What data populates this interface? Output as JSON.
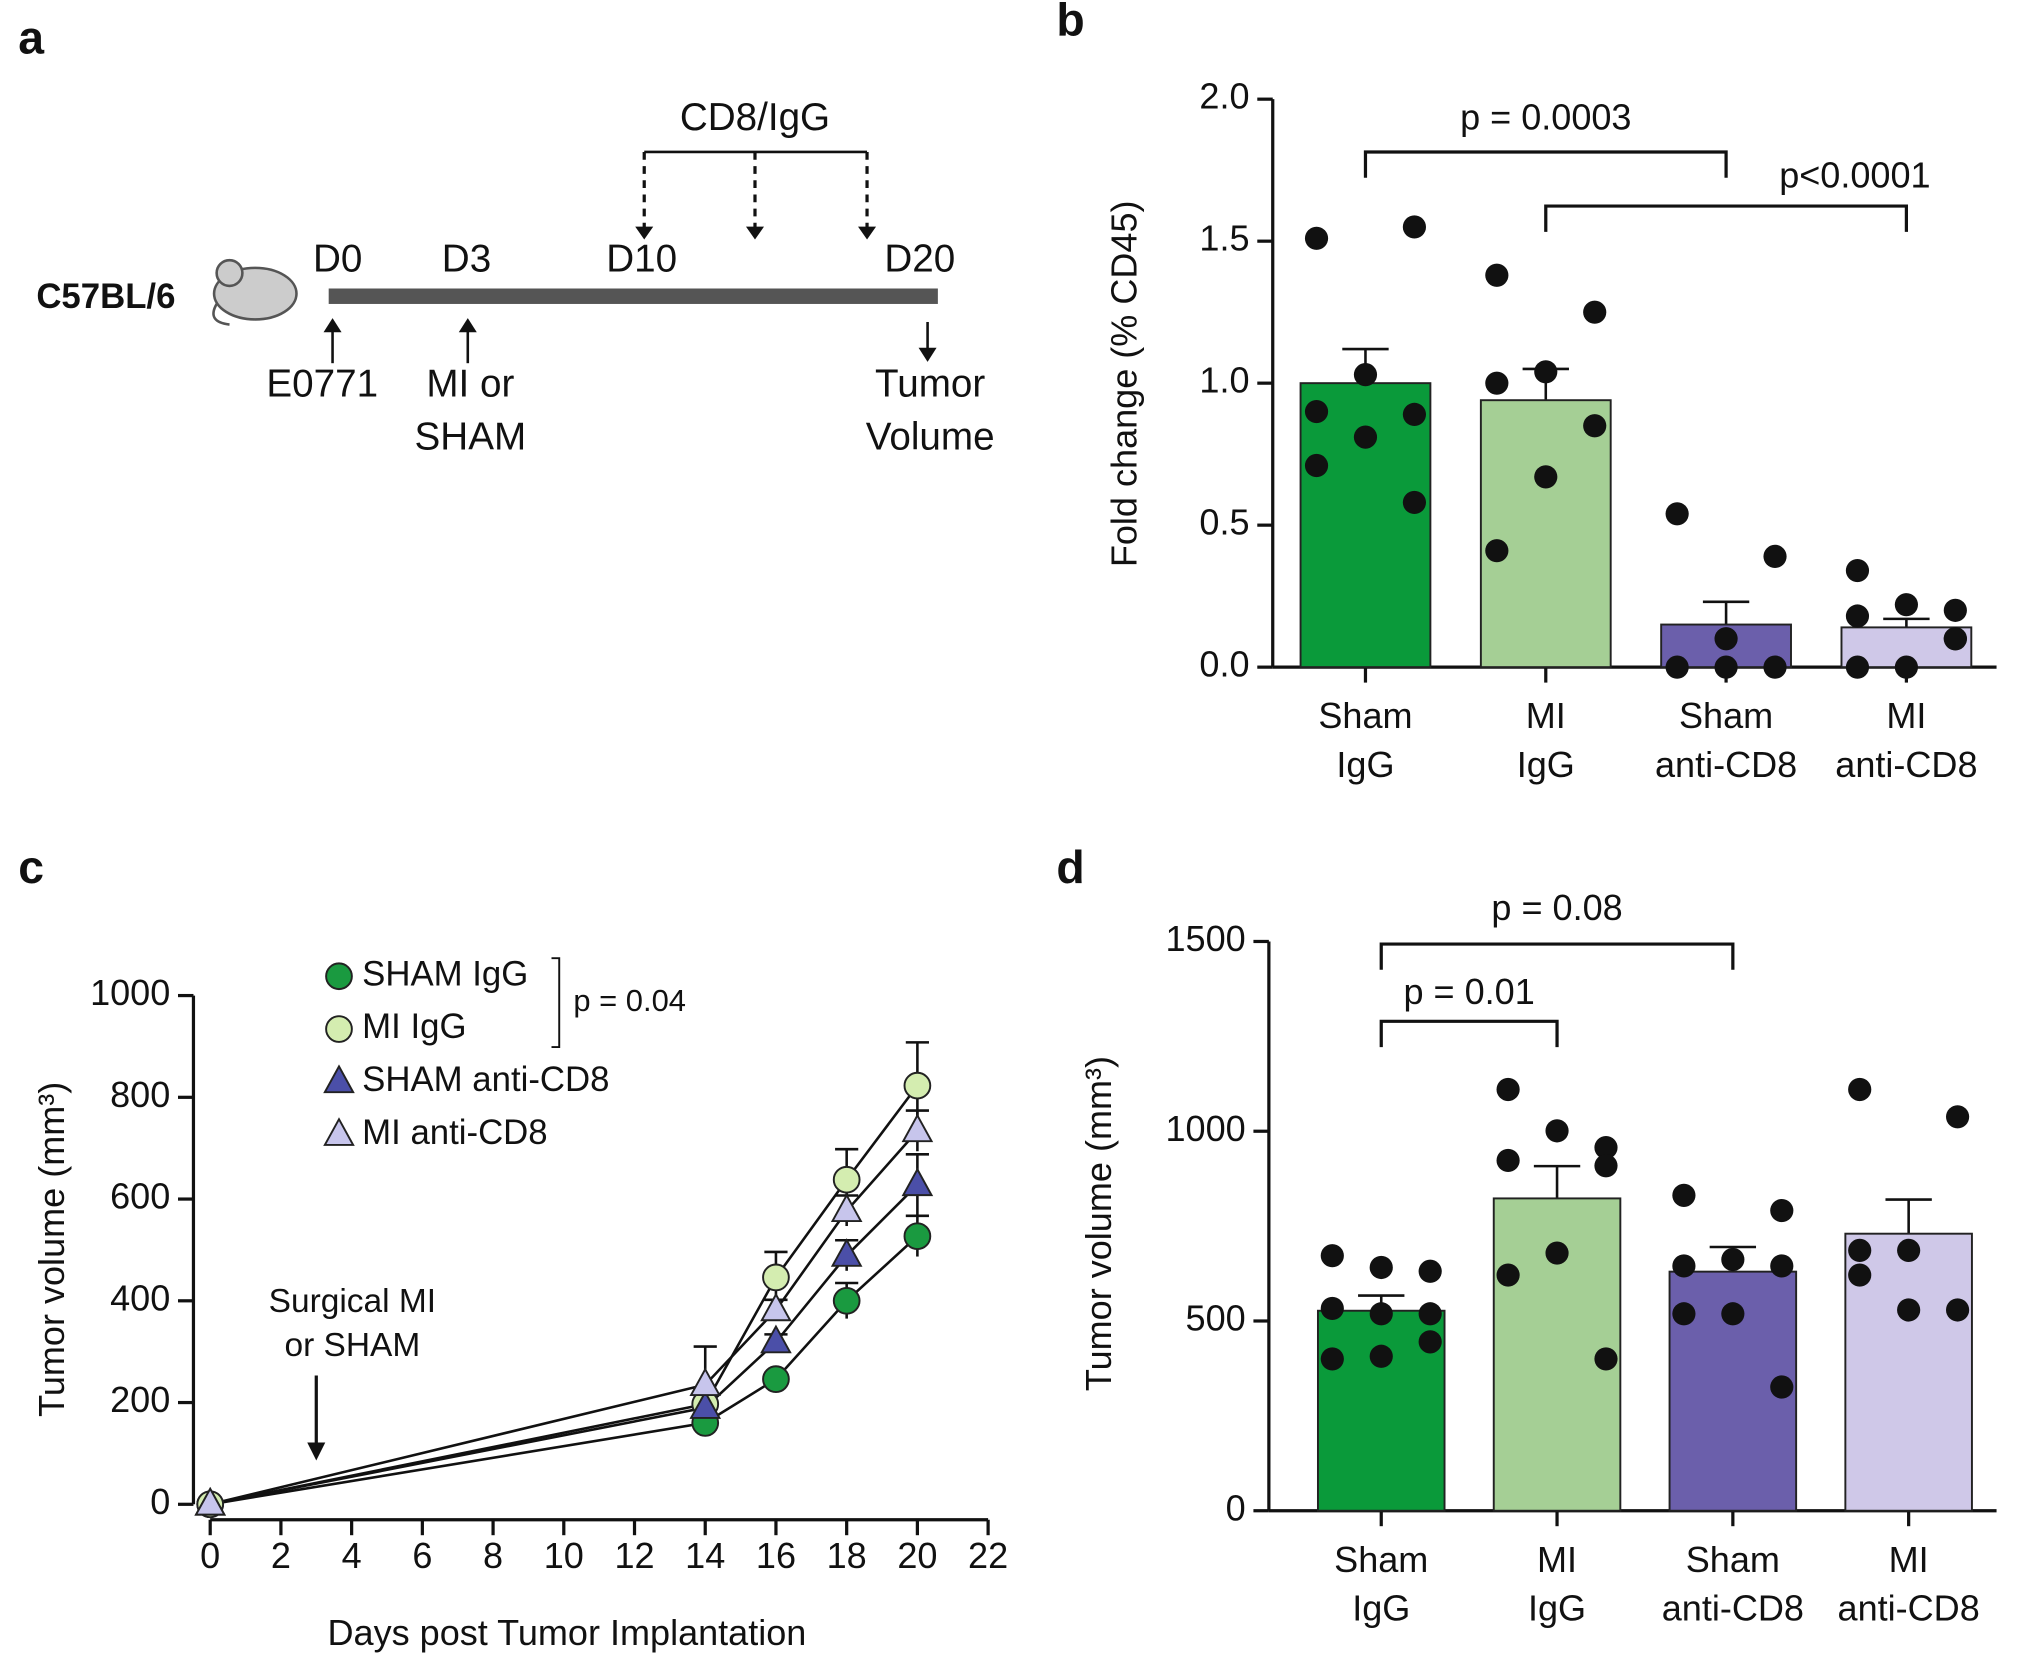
{
  "panel_labels": [
    "a",
    "b",
    "c",
    "d"
  ],
  "timeline": {
    "strain": "C57BL/6",
    "days": [
      "D0",
      "D3",
      "D10",
      "D20"
    ],
    "treatment": "CD8/IgG",
    "events": [
      [
        "E0771"
      ],
      [
        "MI or",
        "SHAM"
      ],
      [
        "Tumor",
        "Volume"
      ]
    ]
  },
  "chart_data": [
    {
      "type": "bar",
      "ylabel": "Fold change (% CD45)",
      "categories": [
        [
          "Sham",
          "IgG"
        ],
        [
          "MI",
          "IgG"
        ],
        [
          "Sham",
          "anti-CD8"
        ],
        [
          "MI",
          "anti-CD8"
        ]
      ],
      "values": [
        1.0,
        0.94,
        0.15,
        0.14
      ],
      "errors": [
        0.12,
        0.11,
        0.08,
        0.03
      ],
      "points": [
        [
          1.51,
          1.55,
          1.03,
          0.9,
          0.89,
          0.81,
          0.71,
          0.58
        ],
        [
          1.38,
          1.25,
          1.04,
          1.0,
          0.85,
          0.67,
          0.41
        ],
        [
          0.54,
          0.39,
          0.1,
          0.0,
          0.0,
          0.0
        ],
        [
          0.34,
          0.2,
          0.22,
          0.18,
          0.1,
          0.0,
          0.0,
          0.1
        ]
      ],
      "colors": [
        "#0a9a3a",
        "#a5cf95",
        "#6b5fab",
        "#cfc8e8"
      ],
      "ylim": [
        0,
        2
      ],
      "yticks": [
        {
          "value": 0,
          "label": "0.0"
        },
        0.5,
        {
          "value": 1,
          "label": "1.0"
        },
        1.5,
        {
          "value": 2,
          "label": "2.0"
        }
      ],
      "comparisons": [
        {
          "from": 0,
          "to": 2,
          "label": "p = 0.0003"
        },
        {
          "from": 1,
          "to": 3,
          "label": "p<0.0001"
        }
      ]
    },
    {
      "type": "line",
      "xlabel": "Days post Tumor Implantation",
      "ylabel": "Tumor volume (mm³)",
      "x": [
        0,
        14,
        16,
        18,
        20
      ],
      "series": [
        {
          "name": "SHAM IgG",
          "color": "#1a9a40",
          "marker": "circle",
          "values": [
            0,
            160,
            246,
            400,
            527
          ],
          "errors": [
            0,
            10,
            10,
            35,
            40
          ]
        },
        {
          "name": "MI IgG",
          "color": "#d4edb0",
          "marker": "circle",
          "values": [
            0,
            197,
            446,
            638,
            823
          ],
          "errors": [
            0,
            15,
            50,
            60,
            85
          ]
        },
        {
          "name": "SHAM anti-CD8",
          "color": "#4b4fa8",
          "marker": "triangle",
          "values": [
            0,
            190,
            319,
            489,
            628
          ],
          "errors": [
            0,
            15,
            15,
            30,
            60
          ]
        },
        {
          "name": "MI anti-CD8",
          "color": "#c7c5ec",
          "marker": "triangle",
          "values": [
            0,
            235,
            382,
            577,
            734
          ],
          "errors": [
            0,
            75,
            20,
            30,
            40
          ]
        }
      ],
      "xlim": [
        0,
        22
      ],
      "xticks": [
        0,
        2,
        4,
        6,
        8,
        10,
        12,
        14,
        16,
        18,
        20,
        22
      ],
      "ylim": [
        0,
        1000
      ],
      "yticks": [
        0,
        200,
        400,
        600,
        800,
        1000
      ],
      "legend_comparison": {
        "from": 0,
        "to": 1,
        "label": "p = 0.04"
      },
      "annotation": {
        "text": [
          "Surgical MI",
          "or SHAM"
        ],
        "x": 3
      }
    },
    {
      "type": "bar",
      "ylabel": "Tumor volume (mm³)",
      "categories": [
        [
          "Sham",
          "IgG"
        ],
        [
          "MI",
          "IgG"
        ],
        [
          "Sham",
          "anti-CD8"
        ],
        [
          "MI",
          "anti-CD8"
        ]
      ],
      "values": [
        527,
        823,
        630,
        730
      ],
      "errors": [
        40,
        85,
        65,
        90
      ],
      "points": [
        [
          672,
          631,
          641,
          533,
          519,
          519,
          400,
          445,
          407
        ],
        [
          1110,
          957,
          1001,
          923,
          909,
          679,
          621,
          400
        ],
        [
          831,
          791,
          662,
          645,
          645,
          519,
          519,
          326
        ],
        [
          1110,
          1038,
          686,
          686,
          529,
          529,
          621
        ]
      ],
      "colors": [
        "#0a9a3a",
        "#a5cf95",
        "#6b5fab",
        "#cfc8e8"
      ],
      "ylim": [
        0,
        1500
      ],
      "yticks": [
        0,
        500,
        1000,
        1500
      ],
      "comparisons": [
        {
          "from": 0,
          "to": 1,
          "label": "p = 0.01"
        },
        {
          "from": 0,
          "to": 2,
          "label": "p = 0.08"
        }
      ]
    }
  ]
}
